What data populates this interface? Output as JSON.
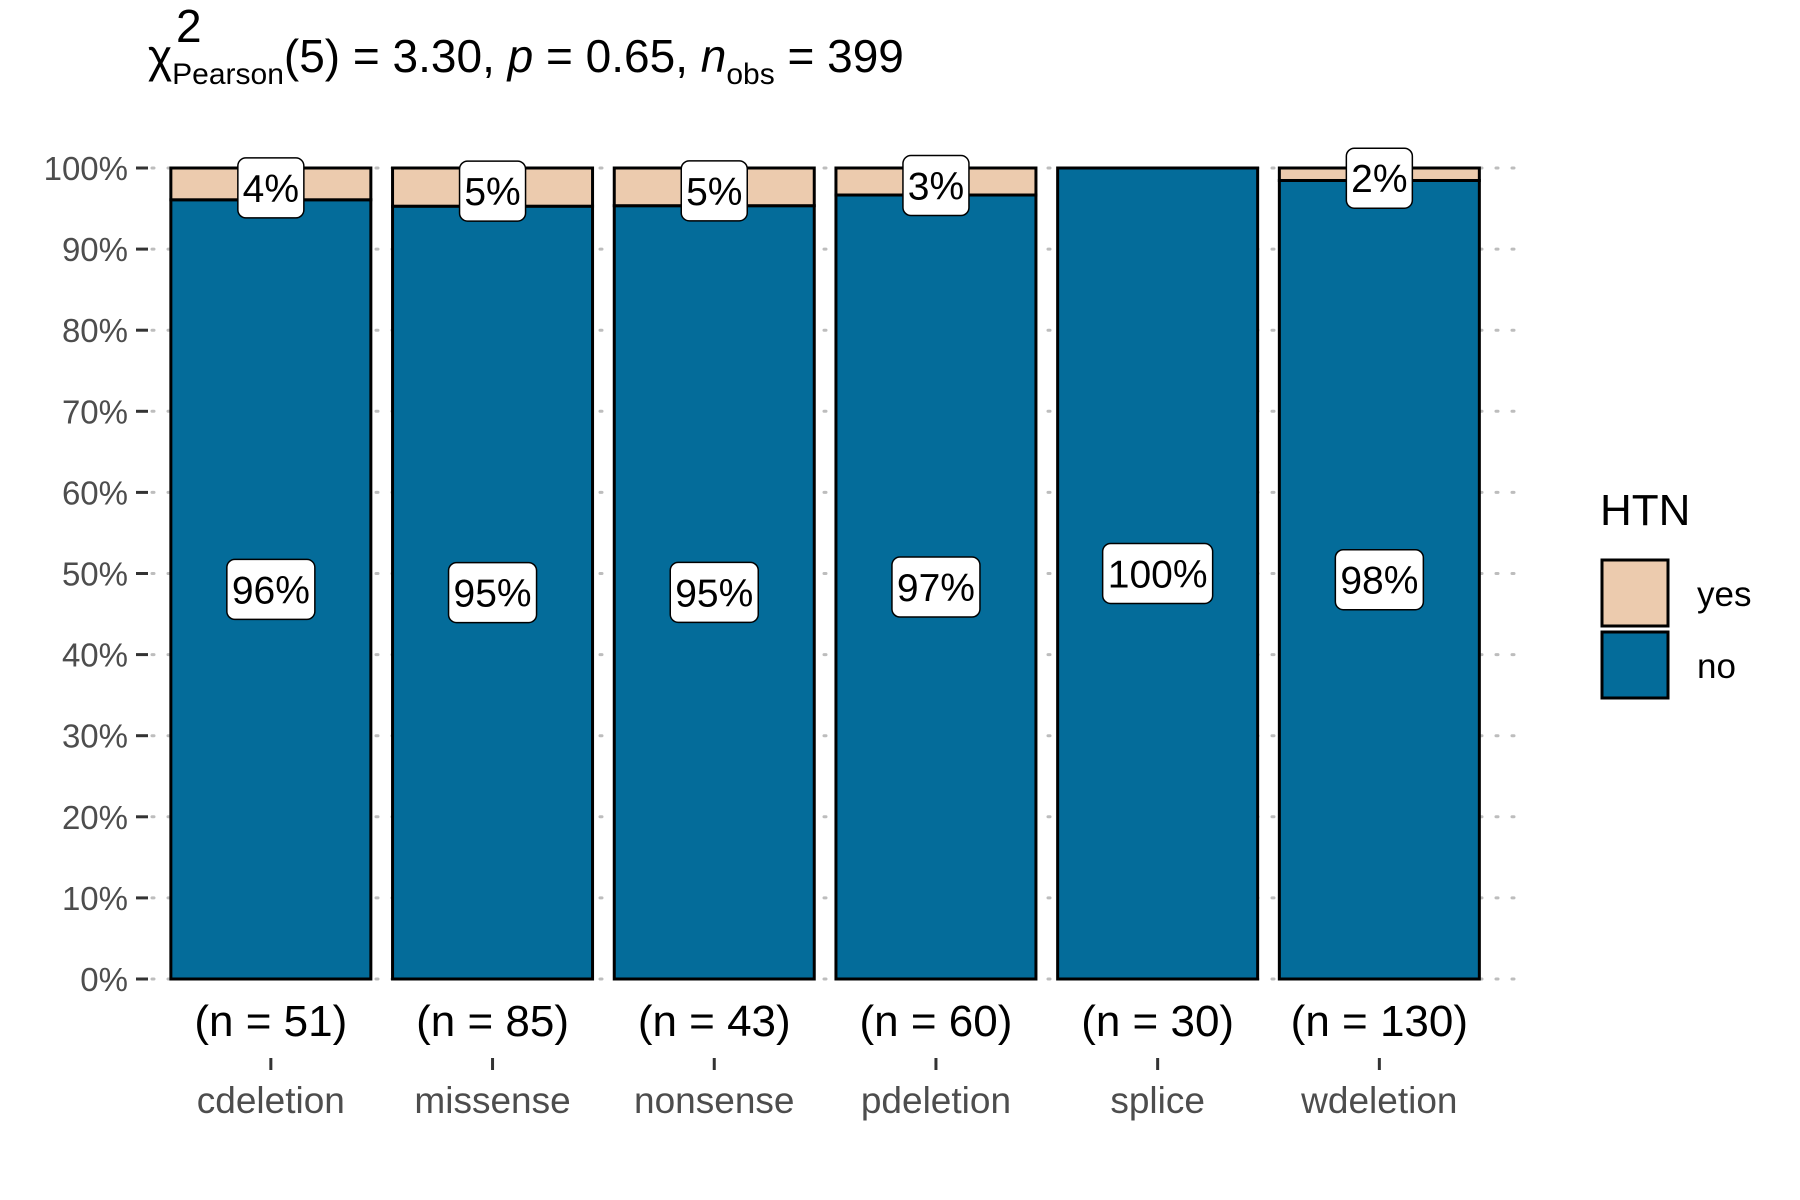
{
  "chart_data": {
    "type": "bar",
    "stacked": true,
    "title_parts": {
      "chi": "χ",
      "sup": "2",
      "sub": "Pearson",
      "rest1": "(5) = 3.30, ",
      "p": "p",
      "rest2": " = 0.65, ",
      "n": "n",
      "n_sub": "obs",
      "rest3": " = 399"
    },
    "categories": [
      "cdeletion",
      "missense",
      "nonsense",
      "pdeletion",
      "splice",
      "wdeletion"
    ],
    "counts": [
      "(n = 51)",
      "(n = 85)",
      "(n = 43)",
      "(n = 60)",
      "(n = 30)",
      "(n = 130)"
    ],
    "series": [
      {
        "name": "no",
        "color": "#046C9A",
        "values": [
          96.08,
          95.29,
          95.35,
          96.67,
          100,
          98.46
        ],
        "labels": [
          "96%",
          "95%",
          "95%",
          "97%",
          "100%",
          "98%"
        ]
      },
      {
        "name": "yes",
        "color": "#ECCBAE",
        "values": [
          3.92,
          4.71,
          4.65,
          3.33,
          0,
          1.54
        ],
        "labels": [
          "4%",
          "5%",
          "5%",
          "3%",
          "",
          "2%"
        ]
      }
    ],
    "ylim": [
      0,
      100
    ],
    "yticks": [
      "0%",
      "10%",
      "20%",
      "30%",
      "40%",
      "50%",
      "60%",
      "70%",
      "80%",
      "90%",
      "100%"
    ],
    "legend": {
      "title": "HTN",
      "position": "right",
      "entries": [
        "yes",
        "no"
      ]
    },
    "grid": "dotted-horizontal-major"
  }
}
